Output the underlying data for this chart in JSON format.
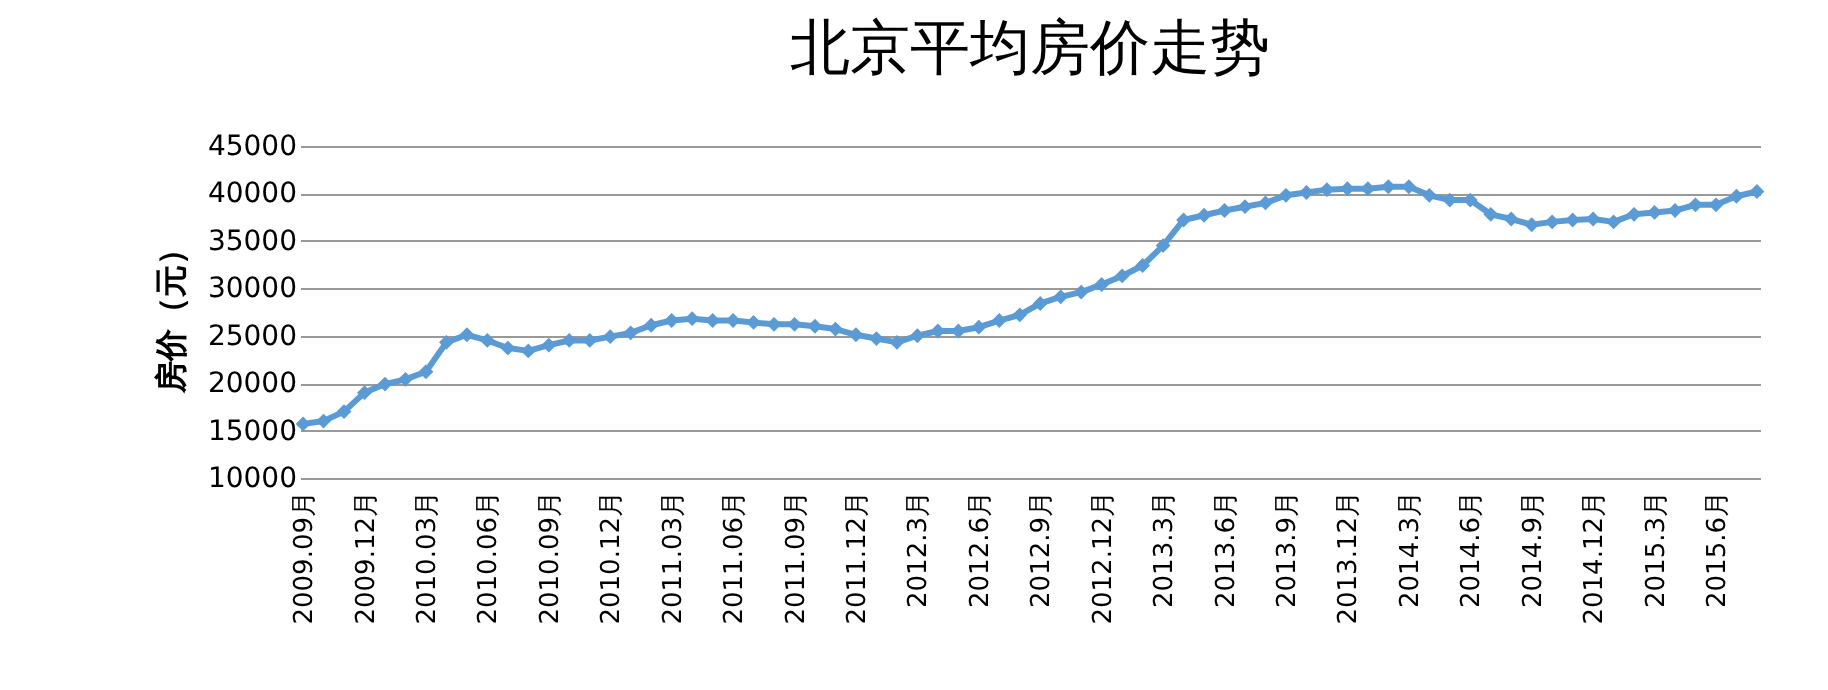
{
  "chart_data": {
    "type": "line",
    "title": "北京平均房价走势",
    "ylabel": "房价（元）",
    "categories": [
      "2009.09月",
      null,
      null,
      "2009.12月",
      null,
      null,
      "2010.03月",
      null,
      null,
      "2010.06月",
      null,
      null,
      "2010.09月",
      null,
      null,
      "2010.12月",
      null,
      null,
      "2011.03月",
      null,
      null,
      "2011.06月",
      null,
      null,
      "2011.09月",
      null,
      null,
      "2011.12月",
      null,
      null,
      "2012.3月",
      null,
      null,
      "2012.6月",
      null,
      null,
      "2012.9月",
      null,
      null,
      "2012.12月",
      null,
      null,
      "2013.3月",
      null,
      null,
      "2013.6月",
      null,
      null,
      "2013.9月",
      null,
      null,
      "2013.12月",
      null,
      null,
      "2014.3月",
      null,
      null,
      "2014.6月",
      null,
      null,
      "2014.9月",
      null,
      null,
      "2014.12月",
      null,
      null,
      "2015.3月",
      null,
      null,
      "2015.6月",
      null,
      null
    ],
    "series": [
      {
        "color": "#5b9bd5",
        "values": [
          15700,
          16000,
          17000,
          19000,
          19900,
          20400,
          21200,
          24300,
          25100,
          24500,
          23700,
          23400,
          24000,
          24500,
          24500,
          24900,
          25300,
          26100,
          26600,
          26800,
          26600,
          26600,
          26400,
          26200,
          26200,
          26000,
          25700,
          25100,
          24700,
          24300,
          25000,
          25500,
          25500,
          25900,
          26600,
          27200,
          28400,
          29100,
          29600,
          30400,
          31300,
          32400,
          34500,
          37200,
          37700,
          38200,
          38600,
          39000,
          39800,
          40100,
          40400,
          40500,
          40500,
          40700,
          40700,
          39800,
          39300,
          39300,
          37800,
          37300,
          36700,
          37000,
          37200,
          37300,
          37000,
          37800,
          38000,
          38200,
          38800,
          38800,
          39700,
          40200
        ]
      }
    ],
    "ylim": [
      10000,
      45000
    ],
    "yticks": [
      10000,
      15000,
      20000,
      25000,
      30000,
      35000,
      40000,
      45000
    ],
    "grid": "y",
    "legend": false,
    "marker": "diamond",
    "line_style": "solid"
  }
}
